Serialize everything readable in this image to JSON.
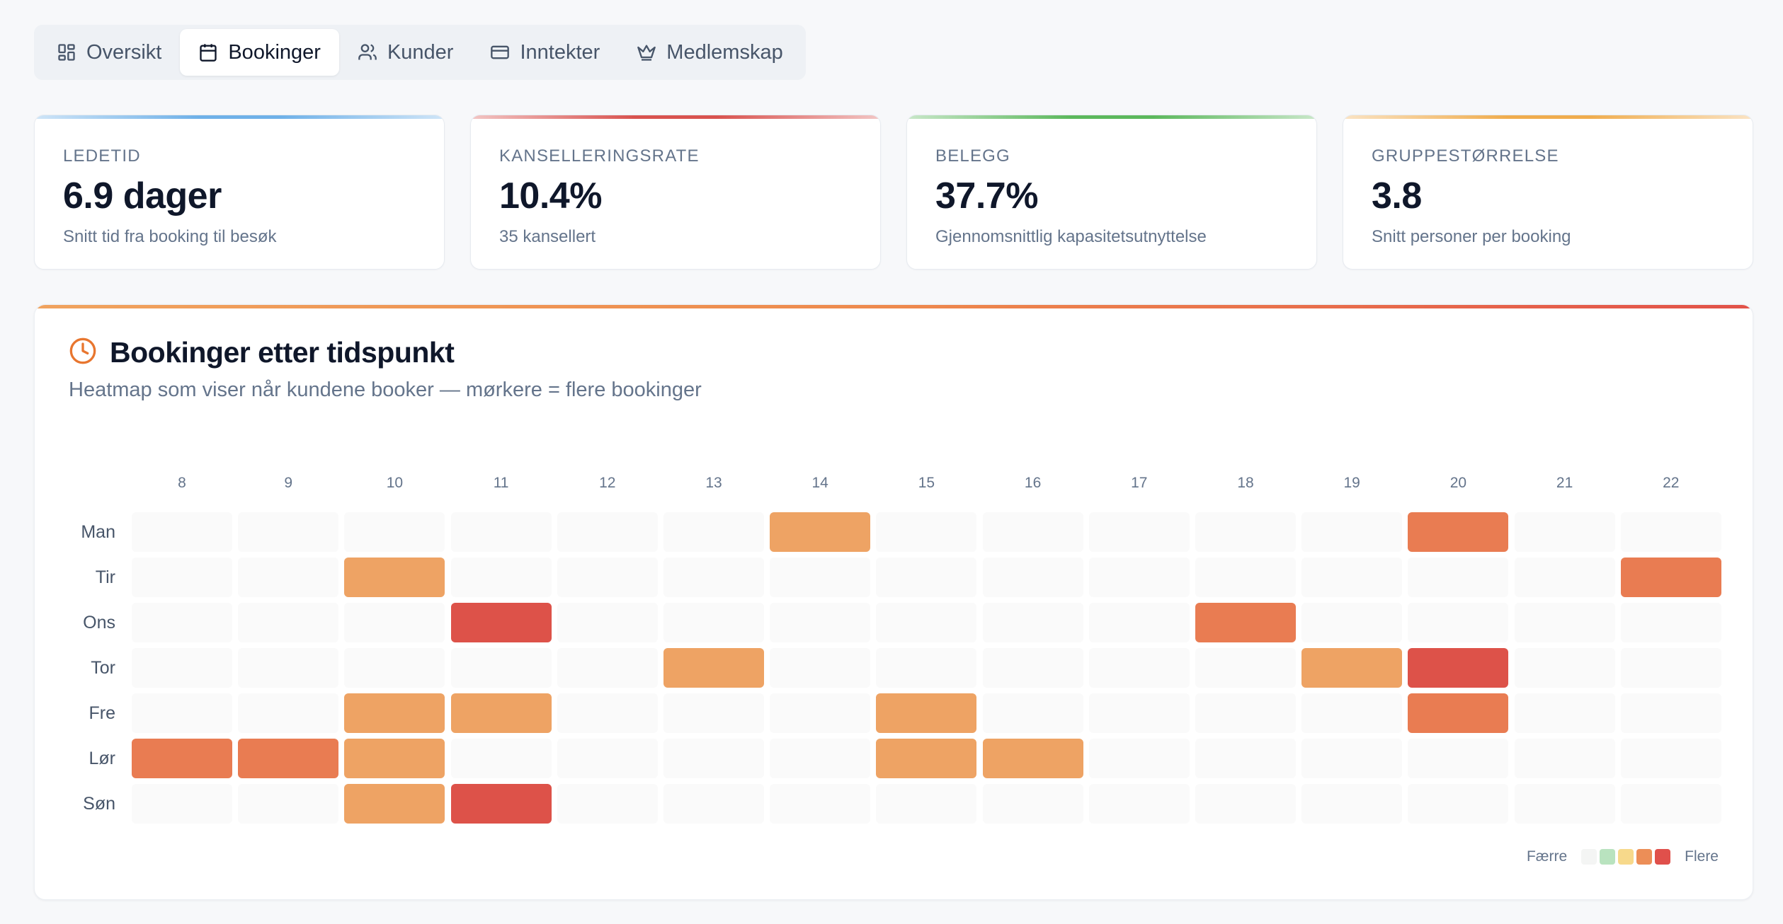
{
  "tabs": [
    {
      "label": "Oversikt",
      "icon": "dashboard-grid-icon",
      "active": false
    },
    {
      "label": "Bookinger",
      "icon": "calendar-icon",
      "active": true
    },
    {
      "label": "Kunder",
      "icon": "users-icon",
      "active": false
    },
    {
      "label": "Inntekter",
      "icon": "credit-card-icon",
      "active": false
    },
    {
      "label": "Medlemskap",
      "icon": "crown-icon",
      "active": false
    }
  ],
  "kpis": [
    {
      "label": "LEDETID",
      "value": "6.9 dager",
      "sub": "Snitt tid fra booking til besøk",
      "accent": "#6fb1e8"
    },
    {
      "label": "KANSELLERINGSRATE",
      "value": "10.4%",
      "sub": "35 kansellert",
      "accent": "#d9534f"
    },
    {
      "label": "BELEGG",
      "value": "37.7%",
      "sub": "Gjennomsnittlig kapasitetsutnyttelse",
      "accent": "#5cb85c"
    },
    {
      "label": "GRUPPESTØRRELSE",
      "value": "3.8",
      "sub": "Snitt personer per booking",
      "accent": "#f0ad4e"
    }
  ],
  "heatmap": {
    "title": "Bookinger etter tidspunkt",
    "subtitle": "Heatmap som viser når kundene booker — mørkere = flere bookinger",
    "title_icon": "clock-icon",
    "legend_low": "Færre",
    "legend_high": "Flere",
    "legend_colors": [
      "#f4f5f4",
      "#b9e3bf",
      "#f7d98b",
      "#ec8e57",
      "#e0504b"
    ],
    "level_colors": [
      "#fafafa",
      "#b9e3bf",
      "#f7d98b",
      "#eea364",
      "#e97c52",
      "#dd5249"
    ]
  },
  "chart_data": {
    "type": "heatmap",
    "x": [
      "8",
      "9",
      "10",
      "11",
      "12",
      "13",
      "14",
      "15",
      "16",
      "17",
      "18",
      "19",
      "20",
      "21",
      "22"
    ],
    "y": [
      "Man",
      "Tir",
      "Ons",
      "Tor",
      "Fre",
      "Lør",
      "Søn"
    ],
    "values": [
      [
        0,
        0,
        0,
        0,
        0,
        0,
        3,
        0,
        0,
        0,
        0,
        0,
        4,
        0,
        0
      ],
      [
        0,
        0,
        3,
        0,
        0,
        0,
        0,
        0,
        0,
        0,
        0,
        0,
        0,
        0,
        4
      ],
      [
        0,
        0,
        0,
        5,
        0,
        0,
        0,
        0,
        0,
        0,
        4,
        0,
        0,
        0,
        0
      ],
      [
        0,
        0,
        0,
        0,
        0,
        3,
        0,
        0,
        0,
        0,
        0,
        3,
        5,
        0,
        0
      ],
      [
        0,
        0,
        3,
        3,
        0,
        0,
        0,
        3,
        0,
        0,
        0,
        0,
        4,
        0,
        0
      ],
      [
        4,
        4,
        3,
        0,
        0,
        0,
        0,
        3,
        3,
        0,
        0,
        0,
        0,
        0,
        0
      ],
      [
        0,
        0,
        3,
        5,
        0,
        0,
        0,
        0,
        0,
        0,
        0,
        0,
        0,
        0,
        0
      ]
    ],
    "title": "Bookinger etter tidspunkt"
  }
}
